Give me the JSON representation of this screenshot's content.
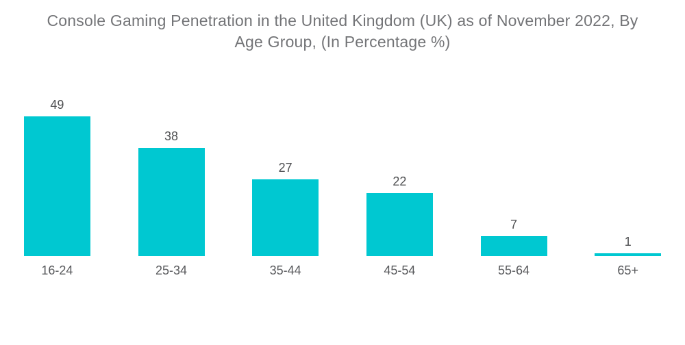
{
  "title": "Console Gaming Penetration in the United Kingdom (UK) as of November 2022, By Age Group, (In Percentage %)",
  "colors": {
    "bar": "#00c8d1",
    "title_text": "#737477",
    "value_text": "#4f5052",
    "category_text": "#57585b",
    "background": "#ffffff"
  },
  "chart_data": {
    "type": "bar",
    "title": "Console Gaming Penetration in the United Kingdom (UK) as of November 2022, By Age Group, (In Percentage %)",
    "categories": [
      "16-24",
      "25-34",
      "35-44",
      "45-54",
      "55-64",
      "65+"
    ],
    "values": [
      49,
      38,
      27,
      22,
      7,
      1
    ],
    "xlabel": "",
    "ylabel": "",
    "ylim": [
      0,
      49
    ],
    "grid": false,
    "legend": false,
    "value_labels_shown": true,
    "axis_lines_shown": false
  }
}
